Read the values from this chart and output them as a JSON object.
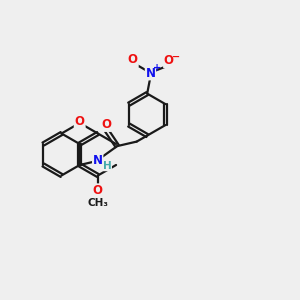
{
  "bg_color": "#efefef",
  "bond_color": "#1a1a1a",
  "bond_width": 1.6,
  "dbo": 0.055,
  "atom_colors": {
    "O": "#ee1111",
    "N": "#1111ee",
    "H": "#44aaaa",
    "C": "#1a1a1a"
  },
  "fs": 8.5,
  "fs_small": 7.0
}
